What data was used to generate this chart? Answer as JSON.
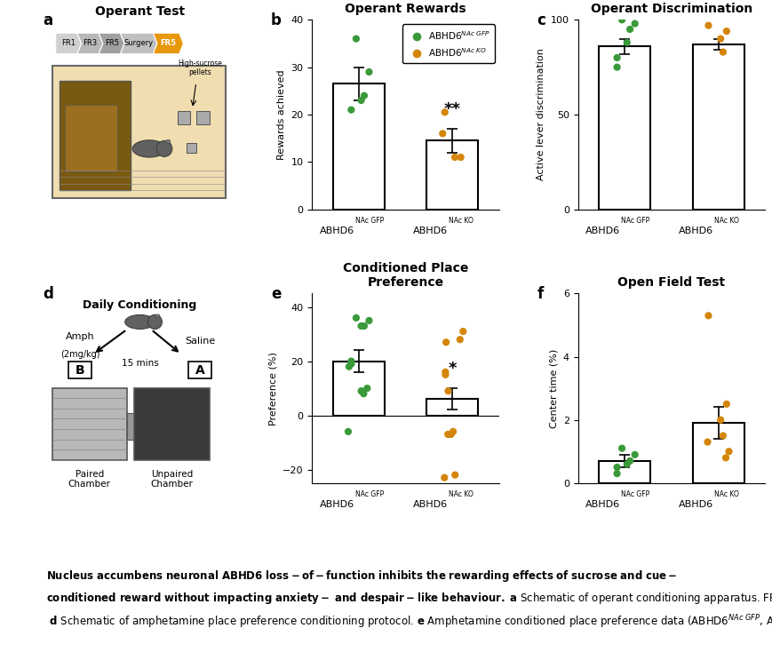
{
  "panel_b": {
    "title": "Operant Rewards",
    "ylabel": "Rewards achieved",
    "bar_means": [
      26.5,
      14.5
    ],
    "bar_sems": [
      3.5,
      2.5
    ],
    "ylim": [
      0,
      40
    ],
    "yticks": [
      0,
      10,
      20,
      30,
      40
    ],
    "gfp_dots": [
      36,
      29,
      24,
      23,
      21
    ],
    "ko_dots": [
      20.5,
      16,
      11,
      11
    ],
    "significance": "**",
    "xtick_super": [
      "NAc GFP",
      "NAc KO"
    ]
  },
  "panel_c": {
    "title": "Operant Discrimination",
    "ylabel": "Active lever discrimination",
    "bar_means": [
      86,
      87
    ],
    "bar_sems": [
      4,
      3
    ],
    "ylim": [
      0,
      100
    ],
    "yticks": [
      0,
      50,
      100
    ],
    "gfp_dots": [
      100,
      98,
      95,
      88,
      80,
      75
    ],
    "ko_dots": [
      97,
      94,
      90,
      83
    ],
    "significance": null,
    "xtick_super": [
      "NAc GFP",
      "NAc KO"
    ]
  },
  "panel_e": {
    "title": "Conditioned Place\nPreference",
    "ylabel": "Preference (%)",
    "bar_means": [
      20,
      6
    ],
    "bar_sems": [
      4,
      4
    ],
    "ylim": [
      -25,
      45
    ],
    "yticks": [
      -20,
      0,
      20,
      40
    ],
    "gfp_dots": [
      36,
      35,
      33,
      33,
      20,
      19,
      18,
      10,
      9,
      8,
      -6
    ],
    "ko_dots": [
      31,
      28,
      27,
      16,
      15,
      9,
      -6,
      -7,
      -7,
      -22,
      -23
    ],
    "significance": "*",
    "xtick_super": [
      "NAc GFP",
      "NAc KO"
    ]
  },
  "panel_f": {
    "title": "Open Field Test",
    "ylabel": "Center time (%)",
    "bar_means": [
      0.7,
      1.9
    ],
    "bar_sems": [
      0.2,
      0.5
    ],
    "ylim": [
      0,
      6
    ],
    "yticks": [
      0,
      2,
      4,
      6
    ],
    "gfp_dots": [
      1.1,
      0.9,
      0.7,
      0.6,
      0.5,
      0.3
    ],
    "ko_dots": [
      5.3,
      2.5,
      2.0,
      1.5,
      1.3,
      1.0,
      0.8
    ],
    "significance": null,
    "xtick_super": [
      "NAc GFP",
      "NAc KO"
    ]
  },
  "gfp_color": "#3a9a3a",
  "ko_color": "#d4860a"
}
